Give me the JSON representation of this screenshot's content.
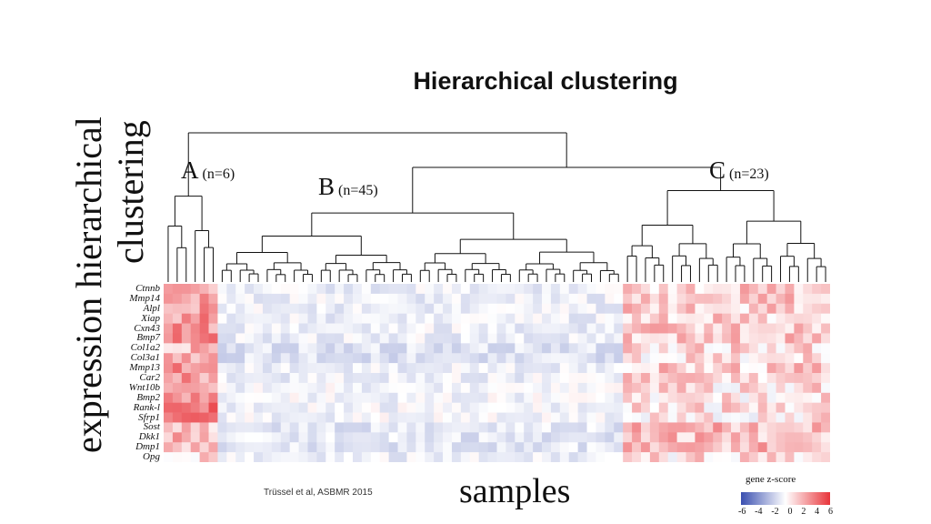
{
  "title": "Hierarchical clustering",
  "y_label_outer": "expression  hierarchical",
  "y_label_inner": "clustering",
  "x_label": "samples",
  "credit": "Trüssel et al, ASBMR 2015",
  "legend": {
    "title": "gene z-score",
    "ticks": [
      "-6",
      "-4",
      "-2",
      "0",
      "2",
      "4",
      "6"
    ],
    "colors": {
      "low": "#3a4fb0",
      "mid": "#ffffff",
      "high": "#e8343a"
    }
  },
  "clusters": [
    {
      "letter": "A",
      "count": "(n=6)"
    },
    {
      "letter": "B",
      "count": "(n=45)"
    },
    {
      "letter": "C",
      "count": "(n=23)"
    }
  ],
  "chart_data": {
    "type": "heatmap",
    "title": "Hierarchical clustering",
    "xlabel": "samples",
    "ylabel": "expression  hierarchical clustering",
    "genes": [
      "Ctnnb",
      "Mmp14",
      "Alpl",
      "Xiap",
      "Cxn43",
      "Bmp7",
      "Col1a2",
      "Col3a1",
      "Mmp13",
      "Car2",
      "Wnt10b",
      "Bmp2",
      "Rank-l",
      "Sfrp1",
      "Sost",
      "Dkk1",
      "Dmp1",
      "Opg"
    ],
    "sample_groups": [
      {
        "cluster": "A",
        "n": 6
      },
      {
        "cluster": "B",
        "n": 45
      },
      {
        "cluster": "C",
        "n": 23
      }
    ],
    "color_scale": {
      "min": -6,
      "max": 6,
      "label": "gene z-score"
    },
    "group_mean_zscore": {
      "A": [
        3,
        3,
        3,
        3,
        3,
        3,
        2,
        2,
        3,
        3,
        3,
        3,
        4,
        5,
        2,
        2,
        2,
        1
      ],
      "B": [
        -0.5,
        -0.5,
        -0.5,
        -0.5,
        -0.5,
        -0.5,
        -1,
        -1,
        -0.5,
        -0.5,
        -0.3,
        -0.3,
        -0.3,
        -0.3,
        -0.8,
        -0.8,
        -0.8,
        -0.5
      ],
      "C": [
        1.5,
        1.5,
        1.5,
        1.5,
        1.5,
        1.5,
        1,
        1,
        1.5,
        1.5,
        1,
        1,
        1,
        0.8,
        2,
        2,
        2,
        1
      ]
    }
  }
}
